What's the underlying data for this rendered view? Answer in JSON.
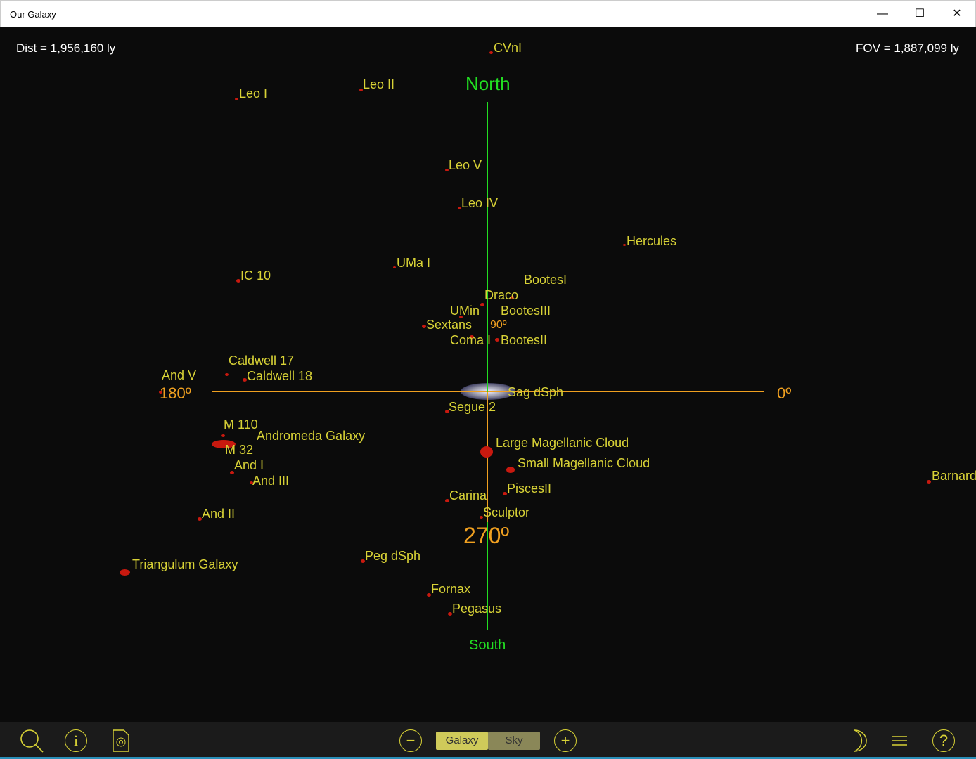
{
  "window": {
    "title": "Our Galaxy",
    "minimize": "—",
    "maximize": "☐",
    "close": "✕"
  },
  "hud": {
    "dist": "Dist = 1,956,160 ly",
    "fov": "FOV = 1,887,099 ly"
  },
  "axes": {
    "north": "North",
    "south": "South",
    "deg0": "0º",
    "deg90": "90º",
    "deg180": "180º",
    "deg270": "270º",
    "north_color": "#22dd22",
    "angle_color": "#f0a020"
  },
  "objects": [
    "CVnI",
    "Leo I",
    "Leo II",
    "Leo V",
    "Leo IV",
    "Hercules",
    "UMa I",
    "IC 10",
    "BootesI",
    "Draco",
    "UMin",
    "BootesIII",
    "Sextans",
    "Coma I",
    "BootesII",
    "Caldwell 17",
    "Caldwell 18",
    "And V",
    "Sag dSph",
    "Segue 2",
    "M 110",
    "M 32",
    "Andromeda Galaxy",
    "Large Magellanic Cloud",
    "Small Magellanic Cloud",
    "PiscesII",
    "Barnard",
    "And I",
    "And III",
    "Carina",
    "Sculptor",
    "And II",
    "Triangulum Galaxy",
    "Peg dSph",
    "Fornax",
    "Pegasus"
  ],
  "label_color": "#d8d236",
  "toolbar": {
    "icons": [
      "search-icon",
      "info-icon",
      "galaxy-document-icon",
      "zoom-out-icon",
      "zoom-in-icon",
      "night-mode-moon-icon",
      "menu-icon",
      "help-icon"
    ],
    "galaxy": "Galaxy",
    "sky": "Sky",
    "active": "Galaxy"
  }
}
